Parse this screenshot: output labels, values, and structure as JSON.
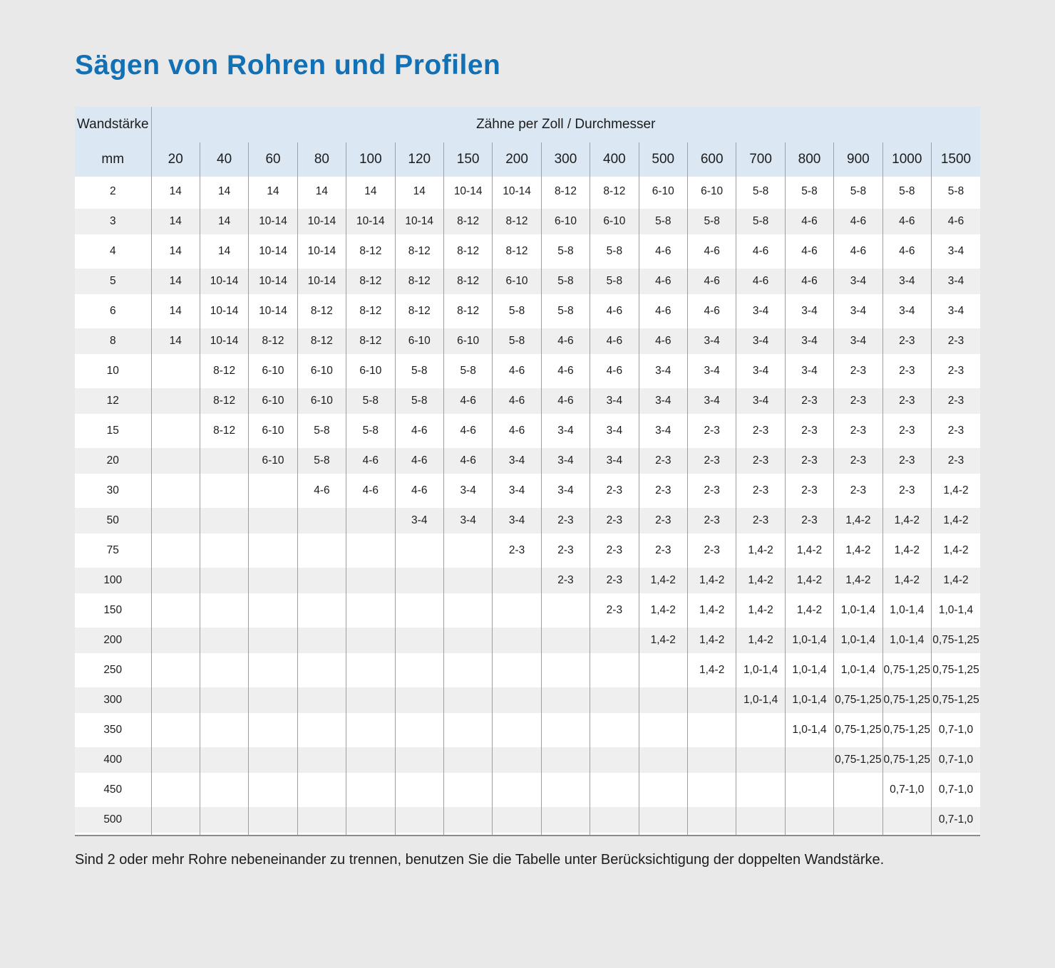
{
  "page": {
    "title": "Sägen von Rohren und Profilen",
    "footnote": "Sind 2 oder mehr Rohre nebeneinander zu trennen, benutzen Sie die Tabelle unter Berücksichtigung der doppelten Wandstärke."
  },
  "table_labels": {
    "row_header_label": "Wandstärke",
    "row_header_unit": "mm",
    "col_group_label": "Zähne per Zoll / Durchmesser"
  },
  "colors": {
    "title_blue": "#1270b4",
    "header_bg": "#dbe7f3",
    "row_alt_bg": "#efefef",
    "page_bg": "#e9e9e9",
    "divider": "#9e9e9e",
    "table_bottom_border": "#8b8b8b"
  },
  "chart_data": {
    "type": "table",
    "title": "Sägen von Rohren und Profilen",
    "column_group_label": "Zähne per Zoll / Durchmesser",
    "row_axis_label": "Wandstärke mm",
    "columns": [
      "20",
      "40",
      "60",
      "80",
      "100",
      "120",
      "150",
      "200",
      "300",
      "400",
      "500",
      "600",
      "700",
      "800",
      "900",
      "1000",
      "1500"
    ],
    "rows": [
      {
        "mm": "2",
        "values": [
          "14",
          "14",
          "14",
          "14",
          "14",
          "14",
          "10-14",
          "10-14",
          "8-12",
          "8-12",
          "6-10",
          "6-10",
          "5-8",
          "5-8",
          "5-8",
          "5-8",
          "5-8"
        ]
      },
      {
        "mm": "3",
        "values": [
          "14",
          "14",
          "10-14",
          "10-14",
          "10-14",
          "10-14",
          "8-12",
          "8-12",
          "6-10",
          "6-10",
          "5-8",
          "5-8",
          "5-8",
          "4-6",
          "4-6",
          "4-6",
          "4-6"
        ]
      },
      {
        "mm": "4",
        "values": [
          "14",
          "14",
          "10-14",
          "10-14",
          "8-12",
          "8-12",
          "8-12",
          "8-12",
          "5-8",
          "5-8",
          "4-6",
          "4-6",
          "4-6",
          "4-6",
          "4-6",
          "4-6",
          "3-4"
        ]
      },
      {
        "mm": "5",
        "values": [
          "14",
          "10-14",
          "10-14",
          "10-14",
          "8-12",
          "8-12",
          "8-12",
          "6-10",
          "5-8",
          "5-8",
          "4-6",
          "4-6",
          "4-6",
          "4-6",
          "3-4",
          "3-4",
          "3-4"
        ]
      },
      {
        "mm": "6",
        "values": [
          "14",
          "10-14",
          "10-14",
          "8-12",
          "8-12",
          "8-12",
          "8-12",
          "5-8",
          "5-8",
          "4-6",
          "4-6",
          "4-6",
          "3-4",
          "3-4",
          "3-4",
          "3-4",
          "3-4"
        ]
      },
      {
        "mm": "8",
        "values": [
          "14",
          "10-14",
          "8-12",
          "8-12",
          "8-12",
          "6-10",
          "6-10",
          "5-8",
          "4-6",
          "4-6",
          "4-6",
          "3-4",
          "3-4",
          "3-4",
          "3-4",
          "2-3",
          "2-3"
        ]
      },
      {
        "mm": "10",
        "values": [
          "",
          "8-12",
          "6-10",
          "6-10",
          "6-10",
          "5-8",
          "5-8",
          "4-6",
          "4-6",
          "4-6",
          "3-4",
          "3-4",
          "3-4",
          "3-4",
          "2-3",
          "2-3",
          "2-3"
        ]
      },
      {
        "mm": "12",
        "values": [
          "",
          "8-12",
          "6-10",
          "6-10",
          "5-8",
          "5-8",
          "4-6",
          "4-6",
          "4-6",
          "3-4",
          "3-4",
          "3-4",
          "3-4",
          "2-3",
          "2-3",
          "2-3",
          "2-3"
        ]
      },
      {
        "mm": "15",
        "values": [
          "",
          "8-12",
          "6-10",
          "5-8",
          "5-8",
          "4-6",
          "4-6",
          "4-6",
          "3-4",
          "3-4",
          "3-4",
          "2-3",
          "2-3",
          "2-3",
          "2-3",
          "2-3",
          "2-3"
        ]
      },
      {
        "mm": "20",
        "values": [
          "",
          "",
          "6-10",
          "5-8",
          "4-6",
          "4-6",
          "4-6",
          "3-4",
          "3-4",
          "3-4",
          "2-3",
          "2-3",
          "2-3",
          "2-3",
          "2-3",
          "2-3",
          "2-3"
        ]
      },
      {
        "mm": "30",
        "values": [
          "",
          "",
          "",
          "4-6",
          "4-6",
          "4-6",
          "3-4",
          "3-4",
          "3-4",
          "2-3",
          "2-3",
          "2-3",
          "2-3",
          "2-3",
          "2-3",
          "2-3",
          "1,4-2"
        ]
      },
      {
        "mm": "50",
        "values": [
          "",
          "",
          "",
          "",
          "",
          "3-4",
          "3-4",
          "3-4",
          "2-3",
          "2-3",
          "2-3",
          "2-3",
          "2-3",
          "2-3",
          "1,4-2",
          "1,4-2",
          "1,4-2"
        ]
      },
      {
        "mm": "75",
        "values": [
          "",
          "",
          "",
          "",
          "",
          "",
          "",
          "2-3",
          "2-3",
          "2-3",
          "2-3",
          "2-3",
          "1,4-2",
          "1,4-2",
          "1,4-2",
          "1,4-2",
          "1,4-2"
        ]
      },
      {
        "mm": "100",
        "values": [
          "",
          "",
          "",
          "",
          "",
          "",
          "",
          "",
          "2-3",
          "2-3",
          "1,4-2",
          "1,4-2",
          "1,4-2",
          "1,4-2",
          "1,4-2",
          "1,4-2",
          "1,4-2"
        ]
      },
      {
        "mm": "150",
        "values": [
          "",
          "",
          "",
          "",
          "",
          "",
          "",
          "",
          "",
          "2-3",
          "1,4-2",
          "1,4-2",
          "1,4-2",
          "1,4-2",
          "1,0-1,4",
          "1,0-1,4",
          "1,0-1,4"
        ]
      },
      {
        "mm": "200",
        "values": [
          "",
          "",
          "",
          "",
          "",
          "",
          "",
          "",
          "",
          "",
          "1,4-2",
          "1,4-2",
          "1,4-2",
          "1,0-1,4",
          "1,0-1,4",
          "1,0-1,4",
          "0,75-1,25"
        ]
      },
      {
        "mm": "250",
        "values": [
          "",
          "",
          "",
          "",
          "",
          "",
          "",
          "",
          "",
          "",
          "",
          "1,4-2",
          "1,0-1,4",
          "1,0-1,4",
          "1,0-1,4",
          "0,75-1,25",
          "0,75-1,25"
        ]
      },
      {
        "mm": "300",
        "values": [
          "",
          "",
          "",
          "",
          "",
          "",
          "",
          "",
          "",
          "",
          "",
          "",
          "1,0-1,4",
          "1,0-1,4",
          "0,75-1,25",
          "0,75-1,25",
          "0,75-1,25"
        ]
      },
      {
        "mm": "350",
        "values": [
          "",
          "",
          "",
          "",
          "",
          "",
          "",
          "",
          "",
          "",
          "",
          "",
          "",
          "1,0-1,4",
          "0,75-1,25",
          "0,75-1,25",
          "0,7-1,0"
        ]
      },
      {
        "mm": "400",
        "values": [
          "",
          "",
          "",
          "",
          "",
          "",
          "",
          "",
          "",
          "",
          "",
          "",
          "",
          "",
          "0,75-1,25",
          "0,75-1,25",
          "0,7-1,0"
        ]
      },
      {
        "mm": "450",
        "values": [
          "",
          "",
          "",
          "",
          "",
          "",
          "",
          "",
          "",
          "",
          "",
          "",
          "",
          "",
          "",
          "0,7-1,0",
          "0,7-1,0"
        ]
      },
      {
        "mm": "500",
        "values": [
          "",
          "",
          "",
          "",
          "",
          "",
          "",
          "",
          "",
          "",
          "",
          "",
          "",
          "",
          "",
          "",
          "0,7-1,0"
        ]
      }
    ]
  }
}
